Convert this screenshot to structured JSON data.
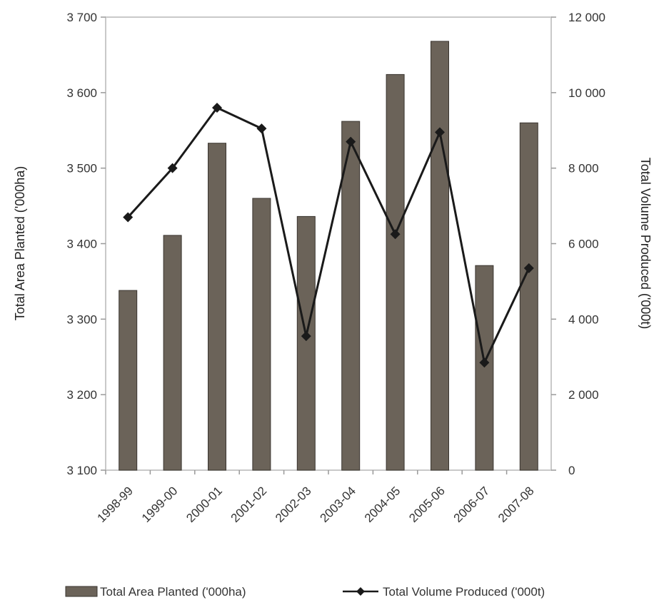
{
  "chart_data": {
    "type": "bar",
    "categories": [
      "1998-99",
      "1999-00",
      "2000-01",
      "2001-02",
      "2002-03",
      "2003-04",
      "2004-05",
      "2005-06",
      "2006-07",
      "2007-08"
    ],
    "title": "",
    "xlabel": "",
    "left_axis": {
      "label": "Total Area Planted ('000ha)",
      "ylim": [
        3100,
        3700
      ],
      "ticks": [
        3100,
        3200,
        3300,
        3400,
        3500,
        3600,
        3700
      ],
      "tick_labels": [
        "3 100",
        "3 200",
        "3 300",
        "3 400",
        "3 500",
        "3 600",
        "3 700"
      ]
    },
    "right_axis": {
      "label": "Total Volume Produced ('000t)",
      "ylim": [
        0,
        12000
      ],
      "ticks": [
        0,
        2000,
        4000,
        6000,
        8000,
        10000,
        12000
      ],
      "tick_labels": [
        "0",
        "2 000",
        "4 000",
        "6 000",
        "8 000",
        "10 000",
        "12 000"
      ]
    },
    "series": [
      {
        "name": "Total Area Planted ('000ha)",
        "type": "bar",
        "axis": "left",
        "color": "#6b6359",
        "values": [
          3338,
          3411,
          3533,
          3460,
          3436,
          3562,
          3624,
          3668,
          3371,
          3560
        ]
      },
      {
        "name": "Total Volume Produced ('000t)",
        "type": "line",
        "axis": "right",
        "color": "#1a1a1a",
        "values": [
          6700,
          8000,
          9600,
          9050,
          3550,
          8700,
          6250,
          8950,
          2850,
          5350
        ]
      }
    ],
    "grid": false,
    "legend": "bottom"
  }
}
